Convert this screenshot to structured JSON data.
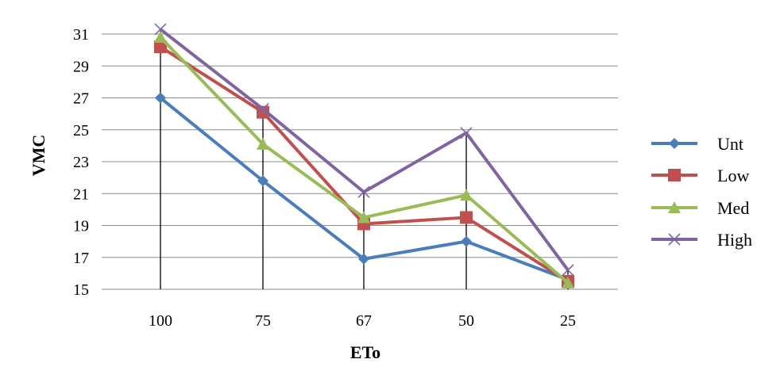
{
  "chart_data": {
    "type": "line",
    "xlabel": "ETo",
    "ylabel": "VMC",
    "categories": [
      "100",
      "75",
      "67",
      "50",
      "25"
    ],
    "ylim": [
      15,
      31
    ],
    "yticks": [
      15,
      17,
      19,
      21,
      23,
      25,
      27,
      29,
      31
    ],
    "grid": "horizontal",
    "legend_position": "right",
    "series": [
      {
        "name": "Unt",
        "values": [
          27.0,
          21.8,
          16.9,
          18.0,
          15.6
        ],
        "color": "#4a7ebb",
        "marker": "diamond"
      },
      {
        "name": "Low",
        "values": [
          30.2,
          26.1,
          19.1,
          19.5,
          15.5
        ],
        "color": "#c0504d",
        "marker": "square"
      },
      {
        "name": "Med",
        "values": [
          30.8,
          24.1,
          19.5,
          20.9,
          15.4
        ],
        "color": "#9bbb59",
        "marker": "triangle"
      },
      {
        "name": "High",
        "values": [
          31.3,
          26.3,
          21.1,
          24.8,
          16.2
        ],
        "color": "#8064a2",
        "marker": "x"
      }
    ]
  }
}
